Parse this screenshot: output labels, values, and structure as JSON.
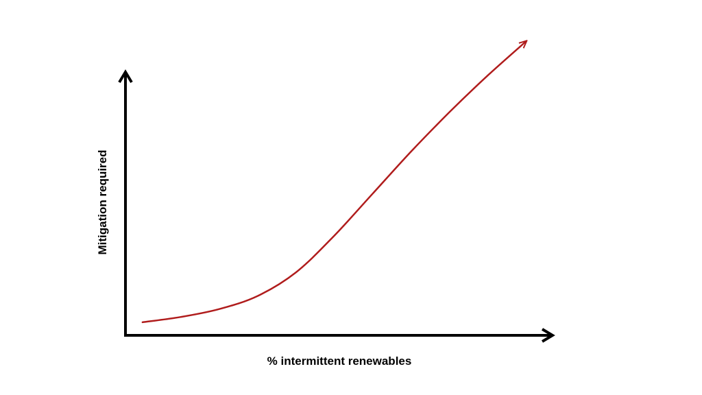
{
  "chart_data": {
    "type": "line",
    "title": "",
    "xlabel": "% intermittent renewables",
    "ylabel": "Mitigation required",
    "xlim": [
      0,
      100
    ],
    "ylim": [
      0,
      100
    ],
    "grid": false,
    "legend": "none",
    "axis_ticks": false,
    "series": [
      {
        "x": [
          4,
          13,
          22,
          31,
          40,
          49,
          58,
          67,
          76,
          85,
          94
        ],
        "y": [
          5,
          7,
          10,
          15,
          24,
          38,
          54,
          70,
          85,
          99,
          112
        ],
        "color": "#b01c1c",
        "end_arrow": true
      }
    ],
    "colors": {
      "axis": "#000000",
      "curve": "#b01c1c",
      "background": "#ffffff"
    }
  }
}
